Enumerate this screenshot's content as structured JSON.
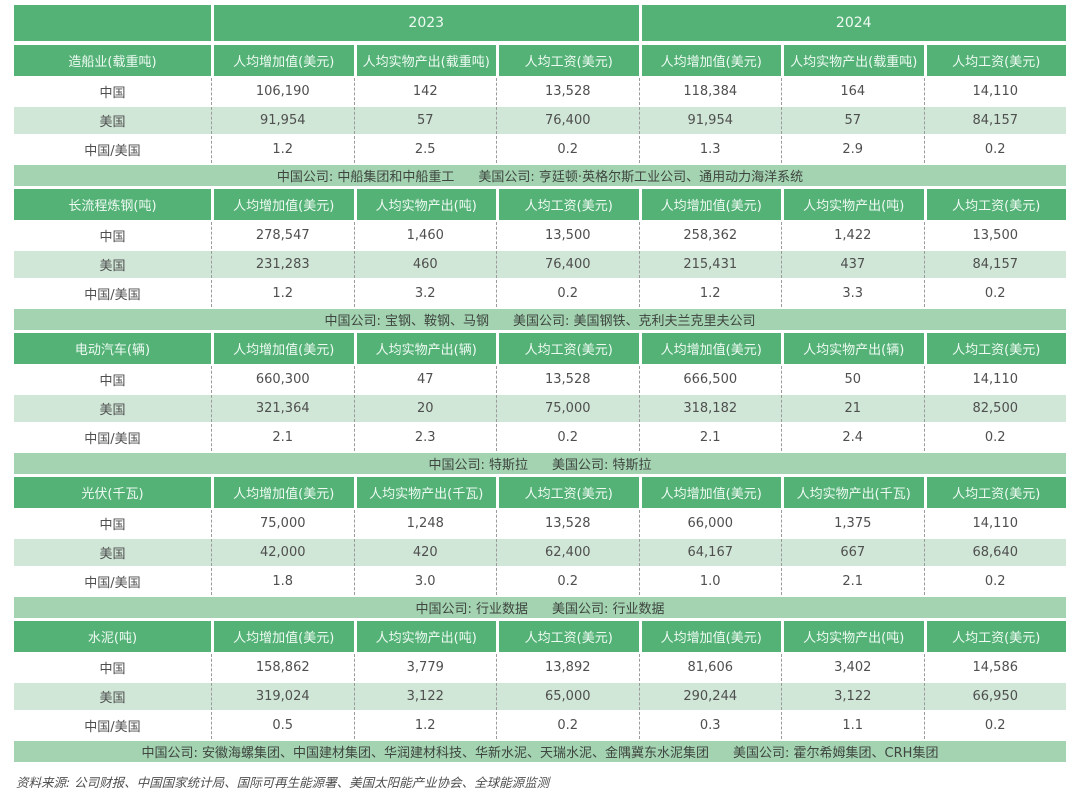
{
  "colors": {
    "header_green": "#54b277",
    "note_green": "#a3d3b0",
    "alt_row_green": "#d0e7d7",
    "header_text": "#eefaf2",
    "body_text": "#4f4f4f",
    "dashed_border": "#9b9b9b"
  },
  "chart_data": {
    "type": "table",
    "years": [
      "2023",
      "2024"
    ],
    "row_labels": [
      "中国",
      "美国",
      "中国/美国"
    ],
    "sections": [
      {
        "title": "造船业(载重吨)",
        "col_headers": [
          "人均增加值(美元)",
          "人均实物产出(载重吨)",
          "人均工资(美元)",
          "人均增加值(美元)",
          "人均实物产出(载重吨)",
          "人均工资(美元)"
        ],
        "rows": [
          {
            "label": "中国",
            "values": [
              "106,190",
              "142",
              "13,528",
              "118,384",
              "164",
              "14,110"
            ]
          },
          {
            "label": "美国",
            "values": [
              "91,954",
              "57",
              "76,400",
              "91,954",
              "57",
              "84,157"
            ]
          },
          {
            "label": "中国/美国",
            "values": [
              "1.2",
              "2.5",
              "0.2",
              "1.3",
              "2.9",
              "0.2"
            ]
          }
        ],
        "note_cn": "中国公司: 中船集团和中船重工",
        "note_us": "美国公司: 亨廷顿·英格尔斯工业公司、通用动力海洋系统"
      },
      {
        "title": "长流程炼钢(吨)",
        "col_headers": [
          "人均增加值(美元)",
          "人均实物产出(吨)",
          "人均工资(美元)",
          "人均增加值(美元)",
          "人均实物产出(吨)",
          "人均工资(美元)"
        ],
        "rows": [
          {
            "label": "中国",
            "values": [
              "278,547",
              "1,460",
              "13,500",
              "258,362",
              "1,422",
              "13,500"
            ]
          },
          {
            "label": "美国",
            "values": [
              "231,283",
              "460",
              "76,400",
              "215,431",
              "437",
              "84,157"
            ]
          },
          {
            "label": "中国/美国",
            "values": [
              "1.2",
              "3.2",
              "0.2",
              "1.2",
              "3.3",
              "0.2"
            ]
          }
        ],
        "note_cn": "中国公司: 宝钢、鞍钢、马钢",
        "note_us": "美国公司: 美国钢铁、克利夫兰克里夫公司"
      },
      {
        "title": "电动汽车(辆)",
        "col_headers": [
          "人均增加值(美元)",
          "人均实物产出(辆)",
          "人均工资(美元)",
          "人均增加值(美元)",
          "人均实物产出(辆)",
          "人均工资(美元)"
        ],
        "rows": [
          {
            "label": "中国",
            "values": [
              "660,300",
              "47",
              "13,528",
              "666,500",
              "50",
              "14,110"
            ]
          },
          {
            "label": "美国",
            "values": [
              "321,364",
              "20",
              "75,000",
              "318,182",
              "21",
              "82,500"
            ]
          },
          {
            "label": "中国/美国",
            "values": [
              "2.1",
              "2.3",
              "0.2",
              "2.1",
              "2.4",
              "0.2"
            ]
          }
        ],
        "note_cn": "中国公司: 特斯拉",
        "note_us": "美国公司: 特斯拉"
      },
      {
        "title": "光伏(千瓦)",
        "col_headers": [
          "人均增加值(美元)",
          "人均实物产出(千瓦)",
          "人均工资(美元)",
          "人均增加值(美元)",
          "人均实物产出(千瓦)",
          "人均工资(美元)"
        ],
        "rows": [
          {
            "label": "中国",
            "values": [
              "75,000",
              "1,248",
              "13,528",
              "66,000",
              "1,375",
              "14,110"
            ]
          },
          {
            "label": "美国",
            "values": [
              "42,000",
              "420",
              "62,400",
              "64,167",
              "667",
              "68,640"
            ]
          },
          {
            "label": "中国/美国",
            "values": [
              "1.8",
              "3.0",
              "0.2",
              "1.0",
              "2.1",
              "0.2"
            ]
          }
        ],
        "note_cn": "中国公司: 行业数据",
        "note_us": "美国公司: 行业数据"
      },
      {
        "title": "水泥(吨)",
        "col_headers": [
          "人均增加值(美元)",
          "人均实物产出(吨)",
          "人均工资(美元)",
          "人均增加值(美元)",
          "人均实物产出(吨)",
          "人均工资(美元)"
        ],
        "rows": [
          {
            "label": "中国",
            "values": [
              "158,862",
              "3,779",
              "13,892",
              "81,606",
              "3,402",
              "14,586"
            ]
          },
          {
            "label": "美国",
            "values": [
              "319,024",
              "3,122",
              "65,000",
              "290,244",
              "3,122",
              "66,950"
            ]
          },
          {
            "label": "中国/美国",
            "values": [
              "0.5",
              "1.2",
              "0.2",
              "0.3",
              "1.1",
              "0.2"
            ]
          }
        ],
        "note_cn": "中国公司: 安徽海螺集团、中国建材集团、华润建材科技、华新水泥、天瑞水泥、金隅冀东水泥集团",
        "note_us": "美国公司: 霍尔希姆集团、CRH集团"
      }
    ],
    "source": "资料来源: 公司财报、中国国家统计局、国际可再生能源署、美国太阳能产业协会、全球能源监测"
  }
}
